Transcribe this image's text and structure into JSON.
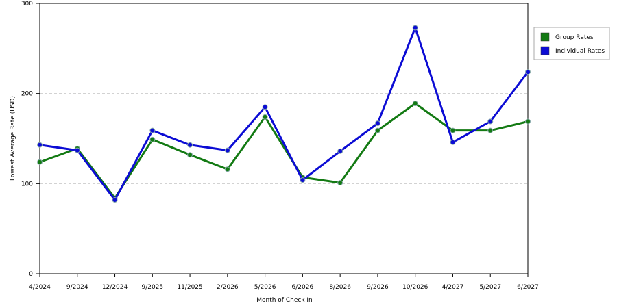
{
  "chart_data": {
    "type": "line",
    "x_label": "Month of Check In",
    "y_label": "Lowest Average Rate (USD)",
    "categories": [
      "4/2024",
      "9/2024",
      "12/2024",
      "9/2025",
      "11/2025",
      "2/2026",
      "5/2026",
      "6/2026",
      "8/2026",
      "9/2026",
      "10/2026",
      "4/2027",
      "5/2027",
      "6/2027"
    ],
    "series": [
      {
        "name": "Group Rates",
        "color": "#137a13",
        "values": [
          124,
          139,
          84,
          149,
          132,
          116,
          174,
          107,
          101,
          159,
          189,
          159,
          159,
          169
        ]
      },
      {
        "name": "Individual Rates",
        "color": "#0c0cd4",
        "values": [
          143,
          137,
          82,
          159,
          143,
          137,
          185,
          104,
          136,
          167,
          273,
          146,
          169,
          224
        ]
      }
    ],
    "ylim": [
      0,
      300
    ],
    "yticks": [
      0,
      100,
      200,
      300
    ],
    "grid": true,
    "legend": "right"
  }
}
